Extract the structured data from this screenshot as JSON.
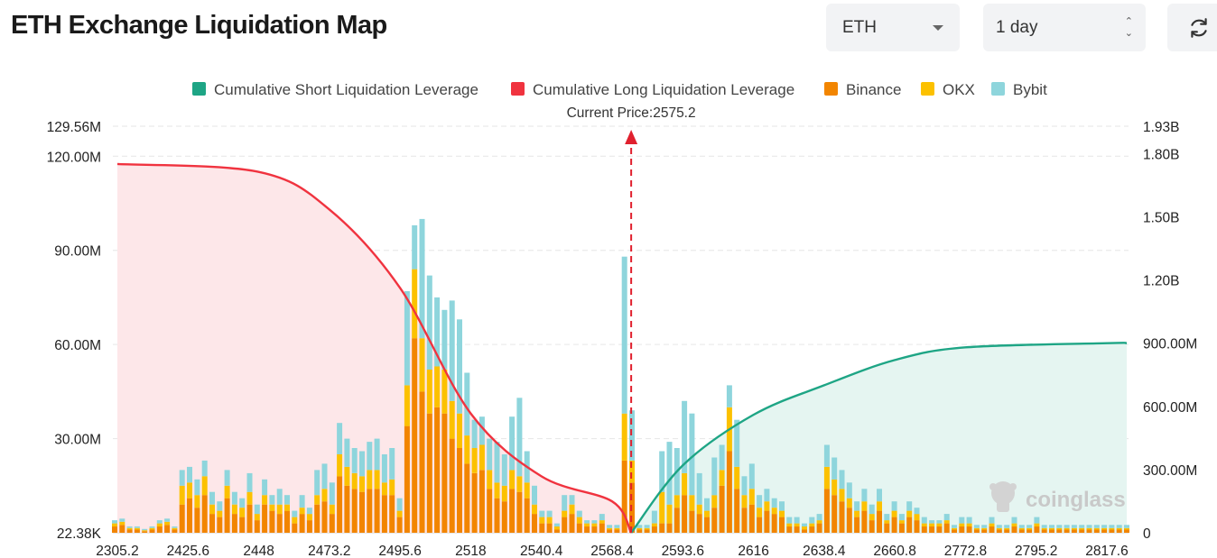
{
  "header": {
    "title": "ETH Exchange Liquidation Map",
    "coin_select": "ETH",
    "period_select": "1 day"
  },
  "colors": {
    "short_cum": "#1ea585",
    "long_cum": "#f0333f",
    "binance": "#f28500",
    "okx": "#fcc100",
    "bybit": "#8ed5dc"
  },
  "icons": {
    "dropdown": "chevron-down-icon",
    "stepper": "up-down-stepper-icon",
    "refresh": "refresh-icon",
    "watermark": "coinglass-logo"
  },
  "watermark": "coinglass",
  "chart_data": {
    "type": "bar",
    "title": "",
    "current_price_label": "Current Price:2575.2",
    "current_price": 2575.2,
    "x_tick_labels": [
      "2305.2",
      "2425.6",
      "2448",
      "2473.2",
      "2495.6",
      "2518",
      "2540.4",
      "2568.4",
      "2593.6",
      "2616",
      "2638.4",
      "2660.8",
      "2772.8",
      "2795.2",
      "2817.6"
    ],
    "y_left_ticks": [
      "129.56M",
      "120.00M",
      "90.00M",
      "60.00M",
      "30.00M",
      "22.38K"
    ],
    "y_left_values": [
      129.56,
      120,
      90,
      60,
      30,
      0
    ],
    "y_left_range": [
      0,
      129.56
    ],
    "y_right_ticks": [
      "1.93B",
      "1.80B",
      "1.50B",
      "1.20B",
      "900.00M",
      "600.00M",
      "300.00M",
      "0"
    ],
    "y_right_values": [
      1.93,
      1.8,
      1.5,
      1.2,
      0.9,
      0.6,
      0.3,
      0
    ],
    "y_right_range": [
      0,
      1.93
    ],
    "grid": true,
    "legend_position": "top-center",
    "legend": [
      "Cumulative Short Liquidation Leverage",
      "Cumulative Long Liquidation Leverage",
      "Binance",
      "OKX",
      "Bybit"
    ],
    "bars_unit": "M (left axis)",
    "bars": {
      "binance": [
        2,
        2.5,
        1,
        1,
        0.5,
        1,
        2,
        2.5,
        1,
        9,
        11,
        8,
        12,
        6,
        5,
        11,
        6,
        5,
        9,
        4,
        9,
        7,
        6,
        7,
        3,
        6,
        4,
        9,
        10,
        6,
        18,
        15,
        14,
        13,
        14,
        14,
        12,
        12,
        5,
        34,
        62,
        45,
        38,
        40,
        38,
        30,
        27,
        22,
        19,
        20,
        14,
        11,
        10,
        14,
        13,
        11,
        6,
        3,
        3,
        1,
        5,
        6,
        3,
        2,
        2,
        3,
        1,
        1,
        23,
        16,
        1,
        1,
        2,
        3,
        3,
        8,
        12,
        7,
        6,
        5,
        8,
        15,
        26,
        14,
        8,
        9,
        5,
        7,
        6,
        5,
        2,
        2,
        1,
        2,
        3,
        14,
        12,
        10,
        8,
        5,
        7,
        4,
        7,
        3,
        5,
        3,
        5,
        4,
        2,
        2,
        2,
        3,
        1,
        2,
        2,
        1,
        1,
        2,
        1,
        1,
        2,
        1,
        1,
        2,
        1,
        1,
        1,
        1,
        1,
        1,
        1,
        1,
        1,
        1,
        1,
        1
      ],
      "okx": [
        1,
        1,
        0.5,
        0.5,
        0.3,
        0.5,
        1,
        1,
        0.5,
        6,
        5,
        4,
        6,
        3,
        2,
        4,
        3,
        3,
        4,
        2,
        3,
        2,
        3,
        2,
        2,
        2,
        2,
        3,
        4,
        3,
        7,
        6,
        5,
        5,
        6,
        6,
        4,
        5,
        2,
        13,
        22,
        17,
        14,
        13,
        14,
        12,
        11,
        9,
        8,
        8,
        6,
        5,
        5,
        6,
        5,
        5,
        3,
        2,
        2,
        1,
        2,
        3,
        2,
        1,
        1,
        1,
        0.5,
        0.5,
        15,
        7,
        0.5,
        0.5,
        1,
        10,
        6,
        4,
        7,
        5,
        3,
        2,
        4,
        5,
        14,
        7,
        4,
        5,
        3,
        3,
        2,
        2,
        1,
        1,
        1,
        1,
        1,
        7,
        5,
        4,
        3,
        2,
        3,
        2,
        3,
        1,
        2,
        1,
        2,
        2,
        1,
        1,
        1,
        1,
        0.5,
        1,
        1,
        0.5,
        0.5,
        1,
        0.5,
        0.5,
        1,
        0.5,
        0.5,
        1,
        0.5,
        0.5,
        0.5,
        0.5,
        0.5,
        0.5,
        0.5,
        0.5,
        0.5,
        0.5,
        0.5,
        0.5
      ],
      "bybit": [
        1,
        1,
        0.5,
        0.5,
        0.4,
        0.5,
        1,
        1,
        0.5,
        5,
        5,
        5,
        5,
        4,
        3,
        5,
        4,
        3,
        6,
        3,
        5,
        3,
        5,
        3,
        2,
        4,
        2,
        8,
        8,
        7,
        10,
        9,
        8,
        8,
        9,
        10,
        9,
        10,
        4,
        30,
        14,
        38,
        30,
        22,
        19,
        32,
        30,
        20,
        9,
        9,
        10,
        13,
        10,
        17,
        25,
        10,
        6,
        2,
        2,
        1,
        5,
        3,
        2,
        1,
        1,
        2,
        1,
        1,
        50,
        16,
        1,
        1,
        4,
        13,
        20,
        15,
        23,
        26,
        10,
        4,
        12,
        8,
        7,
        15,
        6,
        8,
        4,
        4,
        3,
        3,
        2,
        2,
        1,
        2,
        2,
        7,
        7,
        6,
        5,
        3,
        4,
        3,
        4,
        2,
        3,
        2,
        3,
        2,
        2,
        1,
        1,
        2,
        1,
        2,
        2,
        1,
        1,
        2,
        1,
        1,
        2,
        1,
        1,
        2,
        1,
        1,
        1,
        1,
        1,
        1,
        1,
        1,
        1,
        1,
        1,
        1
      ]
    },
    "cumulative_long_unit": "M (left axis)",
    "cumulative_long": {
      "price": [
        2305.2,
        2448,
        2473.2,
        2495.6,
        2518,
        2540.4,
        2568.4,
        2575.2
      ],
      "value": [
        117.5,
        115,
        103,
        78,
        38,
        18,
        10,
        0
      ]
    },
    "cumulative_short_unit": "B (right axis)",
    "cumulative_short": {
      "price": [
        2575.2,
        2593.6,
        2616,
        2638.4,
        2660.8,
        2772.8,
        2817.6,
        2830
      ],
      "value": [
        0,
        0.32,
        0.56,
        0.7,
        0.82,
        0.88,
        0.9,
        0.9
      ]
    }
  }
}
